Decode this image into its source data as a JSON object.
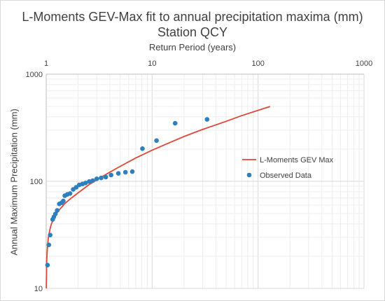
{
  "chart_data": {
    "type": "line",
    "title": "L-Moments GEV-Max fit to annual precipitation maxima (mm)",
    "subtitle": "Station QCY",
    "xlabel": "Return Period (years)",
    "ylabel": "Annual Maximum Precipitation (mm)",
    "x_scale": "log",
    "y_scale": "log",
    "xlim": [
      1,
      1000
    ],
    "ylim": [
      10,
      1000
    ],
    "x_tick_labels": [
      "1",
      "10",
      "100",
      "1000"
    ],
    "y_tick_labels": [
      "10",
      "100",
      "1000"
    ],
    "grid": true,
    "legend_position": "right",
    "series": [
      {
        "name": "L-Moments GEV Max",
        "kind": "line",
        "color": "#e0463a",
        "x": [
          1.001,
          1.01,
          1.03,
          1.05,
          1.08,
          1.12,
          1.18,
          1.25,
          1.35,
          1.5,
          1.7,
          2.0,
          2.5,
          3.0,
          4.0,
          5.0,
          7.0,
          10,
          15,
          20,
          30,
          50,
          70,
          100,
          130
        ],
        "y": [
          10.0,
          18.0,
          25.0,
          30.0,
          35.0,
          40.0,
          45.0,
          50.0,
          55.0,
          62.0,
          69.0,
          78.0,
          92.0,
          103.0,
          122.0,
          138.0,
          165.0,
          195.0,
          232.0,
          262.0,
          305.0,
          363.0,
          410.0,
          460.0,
          500.0
        ]
      },
      {
        "name": "Observed Data",
        "kind": "scatter",
        "color": "#2e7fbe",
        "x": [
          1.03,
          1.06,
          1.09,
          1.15,
          1.18,
          1.22,
          1.27,
          1.33,
          1.4,
          1.45,
          1.5,
          1.58,
          1.68,
          1.8,
          1.92,
          2.05,
          2.2,
          2.35,
          2.55,
          2.75,
          3.0,
          3.3,
          3.65,
          4.1,
          4.8,
          5.6,
          6.5,
          8.1,
          11.0,
          16.5,
          33.0
        ],
        "y": [
          16.5,
          25.5,
          31.5,
          44.0,
          46.5,
          49.5,
          53.5,
          61.5,
          63.0,
          65.5,
          73.5,
          75.5,
          77.0,
          84.0,
          88.0,
          92.5,
          94.5,
          96.5,
          99.5,
          101.5,
          105.5,
          107.5,
          109.5,
          114.5,
          118.5,
          121.5,
          123.0,
          202.0,
          240.0,
          348.0,
          378.0
        ]
      }
    ]
  }
}
